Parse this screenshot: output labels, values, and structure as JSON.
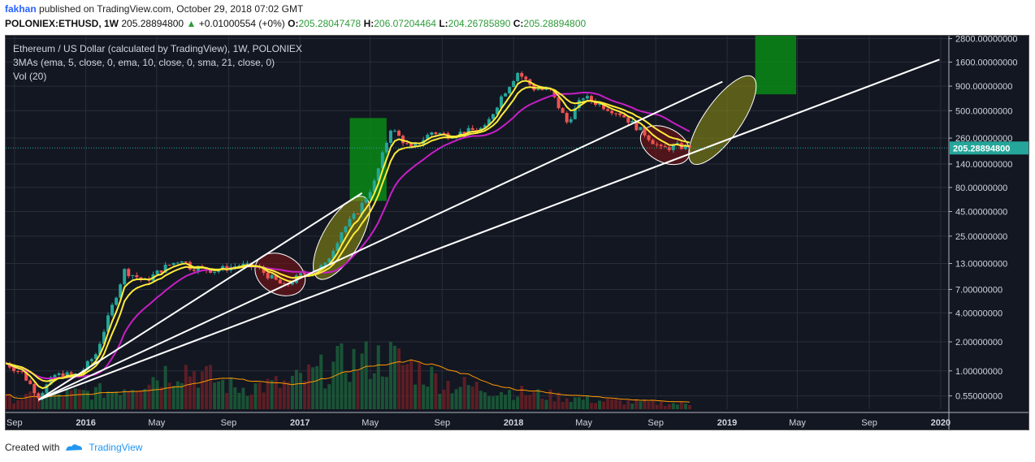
{
  "header": {
    "author": "fakhan",
    "published": "published on TradingView.com, October 29, 2018 07:02 GMT",
    "symbol": "POLONIEX:ETHUSD, 1W",
    "last": "205.28894800",
    "arrow": "▲",
    "change": "+0.01000554 (+0%)",
    "o_label": "O:",
    "o_value": "205.28047478",
    "h_label": "H:",
    "h_value": "206.07204464",
    "l_label": "L:",
    "l_value": "204.26785890",
    "c_label": "C:",
    "c_value": "205.28894800"
  },
  "legend": {
    "title": "Ethereum / US Dollar (calculated by TradingView), 1W, POLONIEX",
    "mas": "3MAs (ema, 5, close, 0, ema, 10, close, 0, sma, 21, close, 0)",
    "vol": "Vol (20)"
  },
  "footer": {
    "created": "Created with",
    "brand": "TradingView"
  },
  "colors": {
    "background": "#131722",
    "up": "#26a69a",
    "down": "#ef5350",
    "ema5": "#ffeb3b",
    "sma21": "#c71fc7",
    "volume_ma": "#ff9800",
    "target_box": "#0b8a16",
    "bull_ellipse": "#8a8a14",
    "bear_ellipse": "#7a1417",
    "trendline": "#ffffff",
    "price_line": "#26a69a"
  },
  "chart_data": {
    "type": "candlestick",
    "scale": "log",
    "ylim": [
      0.4,
      3000
    ],
    "y_ticks": [
      0.55,
      1.0,
      2.0,
      4.0,
      7.0,
      13.0,
      25.0,
      45.0,
      80.0,
      140.0,
      260.0,
      500.0,
      900.0,
      1600.0,
      2800.0
    ],
    "y_tick_labels": [
      "0.55000000",
      "1.00000000",
      "2.00000000",
      "4.00000000",
      "7.00000000",
      "13.00000000",
      "25.00000000",
      "45.00000000",
      "80.00000000",
      "140.00000000",
      "260.00000000",
      "500.00000000",
      "900.00000000",
      "1600.00000000",
      "2800.00000000"
    ],
    "x_tick_labels": [
      "Sep",
      "2016",
      "May",
      "Sep",
      "2017",
      "May",
      "Sep",
      "2018",
      "May",
      "Sep",
      "2019",
      "May",
      "Sep",
      "2020"
    ],
    "x_tick_dates": [
      "2015-09-01",
      "2016-01-01",
      "2016-05-01",
      "2016-09-01",
      "2017-01-01",
      "2017-05-01",
      "2017-09-01",
      "2018-01-01",
      "2018-05-01",
      "2018-09-01",
      "2019-01-01",
      "2019-05-01",
      "2019-09-01",
      "2020-01-01"
    ],
    "xlim": [
      "2015-08-17",
      "2020-01-15"
    ],
    "last_price": 205.288948,
    "last_price_label": "205.28894800",
    "price_anchors": [
      [
        "2015-08-17",
        1.2
      ],
      [
        "2015-09-14",
        0.95
      ],
      [
        "2015-10-12",
        0.55
      ],
      [
        "2015-11-09",
        0.9
      ],
      [
        "2015-12-21",
        0.92
      ],
      [
        "2016-01-18",
        1.5
      ],
      [
        "2016-02-08",
        3.5
      ],
      [
        "2016-03-07",
        11.0
      ],
      [
        "2016-04-11",
        8.5
      ],
      [
        "2016-05-16",
        12.0
      ],
      [
        "2016-06-13",
        14.5
      ],
      [
        "2016-06-27",
        12.0
      ],
      [
        "2016-08-08",
        11.0
      ],
      [
        "2016-09-19",
        12.5
      ],
      [
        "2016-10-17",
        12.0
      ],
      [
        "2016-12-05",
        7.5
      ],
      [
        "2017-01-02",
        9.8
      ],
      [
        "2017-02-13",
        12.5
      ],
      [
        "2017-03-13",
        28.0
      ],
      [
        "2017-04-10",
        45.0
      ],
      [
        "2017-05-08",
        90.0
      ],
      [
        "2017-06-05",
        330.0
      ],
      [
        "2017-07-10",
        200.0
      ],
      [
        "2017-08-14",
        300.0
      ],
      [
        "2017-09-11",
        280.0
      ],
      [
        "2017-10-09",
        300.0
      ],
      [
        "2017-11-13",
        330.0
      ],
      [
        "2017-12-11",
        700.0
      ],
      [
        "2018-01-08",
        1250.0
      ],
      [
        "2018-02-05",
        850.0
      ],
      [
        "2018-03-05",
        800.0
      ],
      [
        "2018-04-02",
        380.0
      ],
      [
        "2018-04-30",
        700.0
      ],
      [
        "2018-05-28",
        580.0
      ],
      [
        "2018-07-02",
        470.0
      ],
      [
        "2018-08-13",
        290.0
      ],
      [
        "2018-09-10",
        200.0
      ],
      [
        "2018-10-08",
        215.0
      ],
      [
        "2018-10-29",
        205.29
      ]
    ],
    "volume_level": [
      [
        "2015-08-17",
        0.12
      ],
      [
        "2016-02-15",
        0.22
      ],
      [
        "2016-04-11",
        0.35
      ],
      [
        "2016-06-13",
        0.5
      ],
      [
        "2016-09-12",
        0.25
      ],
      [
        "2016-12-12",
        0.3
      ],
      [
        "2017-03-20",
        0.55
      ],
      [
        "2017-06-05",
        0.6
      ],
      [
        "2017-09-11",
        0.3
      ],
      [
        "2018-01-08",
        0.2
      ],
      [
        "2018-05-28",
        0.1
      ],
      [
        "2018-10-29",
        0.06
      ]
    ],
    "trendlines": [
      {
        "from": [
          "2015-10-12",
          0.5
        ],
        "to": [
          "2017-04-17",
          70.0
        ]
      },
      {
        "from": [
          "2015-10-12",
          0.5
        ],
        "to": [
          "2018-12-24",
          1000.0
        ]
      },
      {
        "from": [
          "2015-10-12",
          0.5
        ],
        "to": [
          "2019-12-30",
          1700.0
        ]
      }
    ],
    "target_boxes": [
      {
        "from": [
          "2017-03-27",
          58.0
        ],
        "to": [
          "2017-05-29",
          420.0
        ]
      },
      {
        "from": [
          "2019-02-18",
          740.0
        ],
        "to": [
          "2019-04-29",
          3000.0
        ]
      }
    ],
    "bear_ellipses": [
      {
        "center": [
          "2016-11-28",
          10.0
        ],
        "rx_days": 45,
        "ry_factor": 1.6,
        "angle": 28
      },
      {
        "center": [
          "2018-09-17",
          220.0
        ],
        "rx_days": 45,
        "ry_factor": 1.5,
        "angle": 28
      }
    ],
    "bull_ellipses": [
      {
        "center": [
          "2017-03-13",
          24.0
        ],
        "rx_days": 80,
        "ry_factor": 1.55,
        "angle": -60
      },
      {
        "center": [
          "2018-12-24",
          400.0
        ],
        "rx_days": 90,
        "ry_factor": 1.55,
        "angle": -55
      }
    ],
    "series": [
      {
        "name": "ema, 5, close, 0",
        "color": "#ffeb3b"
      },
      {
        "name": "ema, 10, close, 0",
        "color": "#ffeb3b"
      },
      {
        "name": "sma, 21, close, 0",
        "color": "#c71fc7"
      },
      {
        "name": "Vol (20)",
        "color": "#ff9800"
      }
    ]
  }
}
